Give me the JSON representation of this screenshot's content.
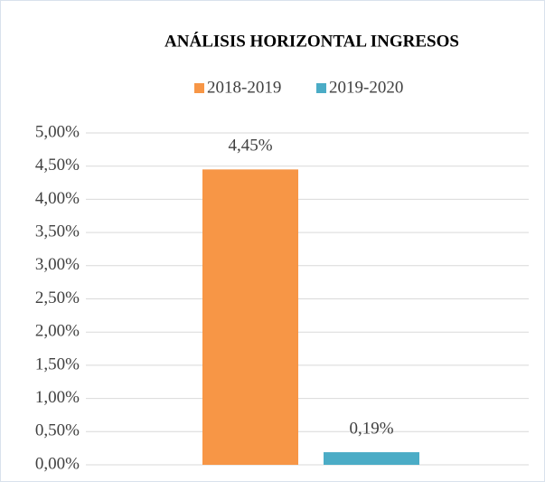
{
  "chart_data": {
    "type": "bar",
    "title": "ANÁLISIS HORIZONTAL INGRESOS",
    "categories": [
      null
    ],
    "series": [
      {
        "name": "2018-2019",
        "color": "#f79646",
        "values": [
          4.45
        ],
        "value_labels": [
          "4,45%"
        ]
      },
      {
        "name": "2019-2020",
        "color": "#4bacc6",
        "values": [
          0.19
        ],
        "value_labels": [
          "0,19%"
        ]
      }
    ],
    "ylim": [
      0,
      5
    ],
    "yticks": [
      {
        "value": 0,
        "label": "0,00%"
      },
      {
        "value": 0.5,
        "label": "0,50%"
      },
      {
        "value": 1,
        "label": "1,00%"
      },
      {
        "value": 1.5,
        "label": "1,50%"
      },
      {
        "value": 2,
        "label": "2,00%"
      },
      {
        "value": 2.5,
        "label": "2,50%"
      },
      {
        "value": 3,
        "label": "3,00%"
      },
      {
        "value": 3.5,
        "label": "3,50%"
      },
      {
        "value": 4,
        "label": "4,00%"
      },
      {
        "value": 4.5,
        "label": "4,50%"
      },
      {
        "value": 5,
        "label": "5,00%"
      }
    ],
    "grid": true,
    "legend": "top"
  }
}
